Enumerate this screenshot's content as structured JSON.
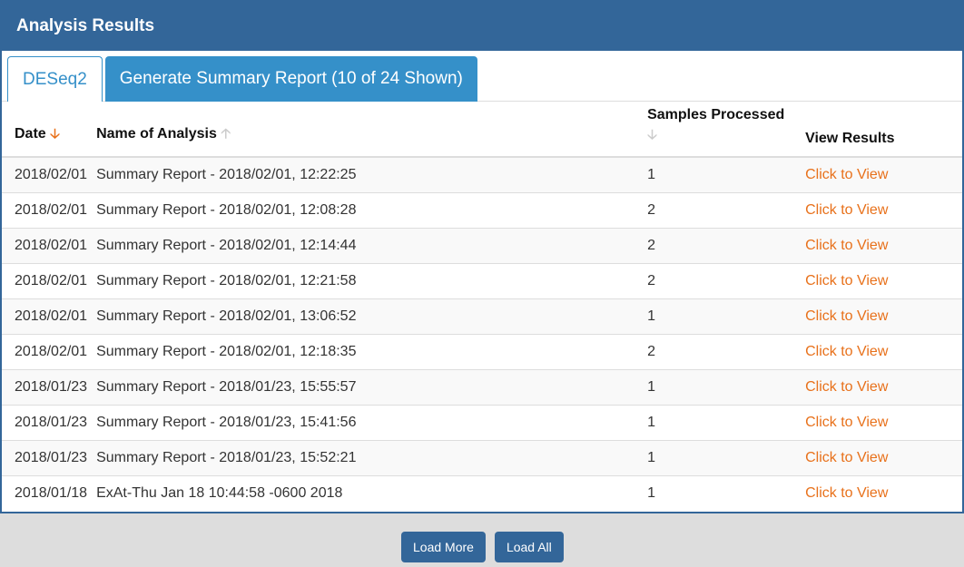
{
  "header": {
    "title": "Analysis Results"
  },
  "tabs": [
    {
      "label": "DESeq2"
    },
    {
      "label": "Generate Summary Report (10 of 24 Shown)"
    }
  ],
  "columns": [
    {
      "label": "Date",
      "sort_icon": "arrow-down-icon",
      "sort_color": "#e8711b"
    },
    {
      "label": "Name of Analysis",
      "sort_icon": "arrow-up-icon",
      "sort_color": "#cccccc"
    },
    {
      "label": "Samples Processed",
      "sort_icon": "arrow-down-icon",
      "sort_color": "#cccccc"
    },
    {
      "label": "View Results"
    }
  ],
  "rows": [
    {
      "date": "2018/02/01",
      "name": "Summary Report - 2018/02/01, 12:22:25",
      "samples": "1",
      "link": "Click to View"
    },
    {
      "date": "2018/02/01",
      "name": "Summary Report - 2018/02/01, 12:08:28",
      "samples": "2",
      "link": "Click to View"
    },
    {
      "date": "2018/02/01",
      "name": "Summary Report - 2018/02/01, 12:14:44",
      "samples": "2",
      "link": "Click to View"
    },
    {
      "date": "2018/02/01",
      "name": "Summary Report - 2018/02/01, 12:21:58",
      "samples": "2",
      "link": "Click to View"
    },
    {
      "date": "2018/02/01",
      "name": "Summary Report - 2018/02/01, 13:06:52",
      "samples": "1",
      "link": "Click to View"
    },
    {
      "date": "2018/02/01",
      "name": "Summary Report - 2018/02/01, 12:18:35",
      "samples": "2",
      "link": "Click to View"
    },
    {
      "date": "2018/01/23",
      "name": "Summary Report - 2018/01/23, 15:55:57",
      "samples": "1",
      "link": "Click to View"
    },
    {
      "date": "2018/01/23",
      "name": "Summary Report - 2018/01/23, 15:41:56",
      "samples": "1",
      "link": "Click to View"
    },
    {
      "date": "2018/01/23",
      "name": "Summary Report - 2018/01/23, 15:52:21",
      "samples": "1",
      "link": "Click to View"
    },
    {
      "date": "2018/01/18",
      "name": "ExAt-Thu Jan 18 10:44:58 -0600 2018",
      "samples": "1",
      "link": "Click to View"
    }
  ],
  "buttons": {
    "load_more": "Load More",
    "load_all": "Load All"
  },
  "colors": {
    "brand": "#336699",
    "tab": "#3590c9",
    "link": "#e8711b"
  }
}
